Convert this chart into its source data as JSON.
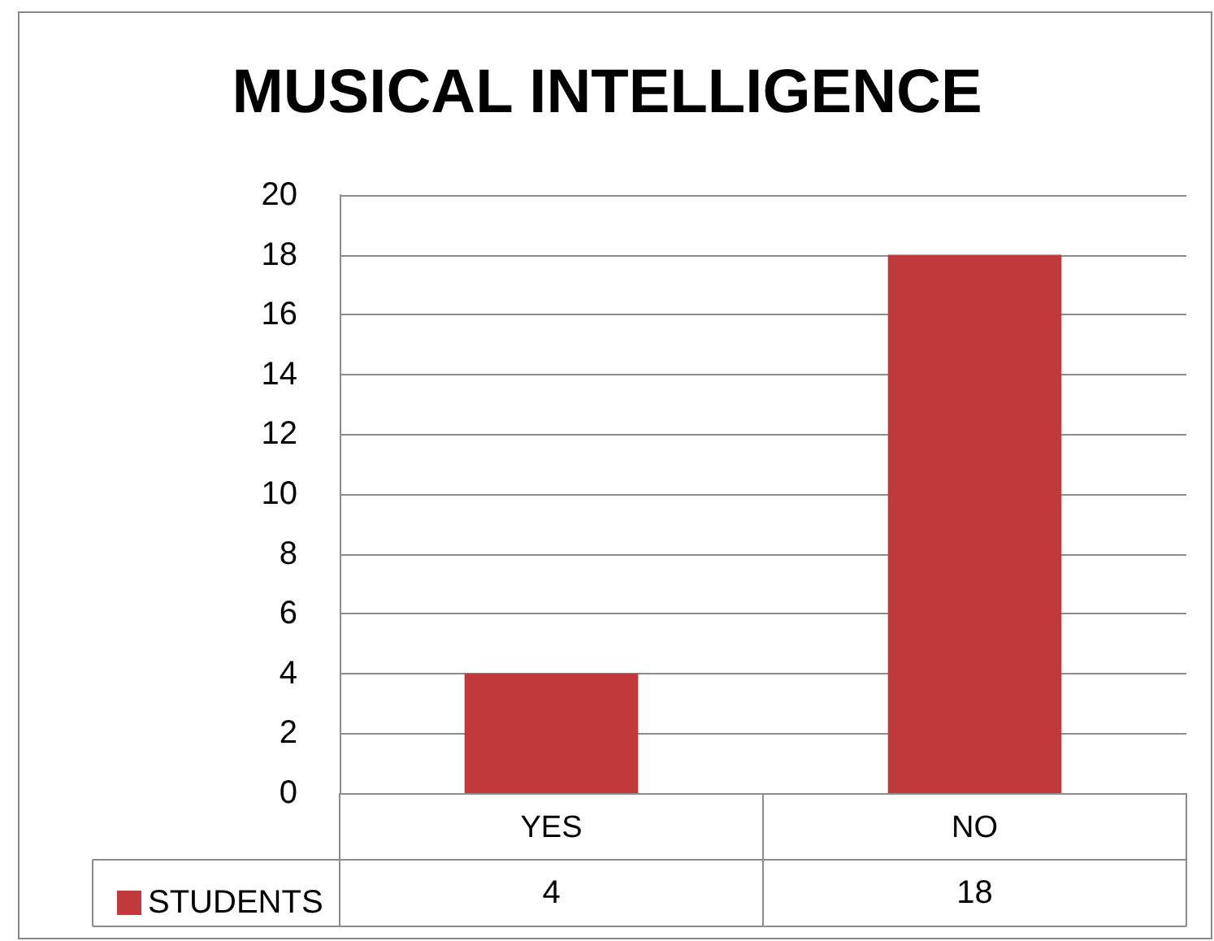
{
  "chart_data": {
    "type": "bar",
    "title": "MUSICAL INTELLIGENCE",
    "categories": [
      "YES",
      "NO"
    ],
    "series": [
      {
        "name": "STUDENTS",
        "color": "#c0393b",
        "values": [
          4,
          18
        ]
      }
    ],
    "ylim": [
      0,
      20
    ],
    "yticks": [
      0,
      2,
      4,
      6,
      8,
      10,
      12,
      14,
      16,
      18,
      20
    ],
    "grid": "y",
    "legend": "bottom left",
    "data_labels": true
  }
}
